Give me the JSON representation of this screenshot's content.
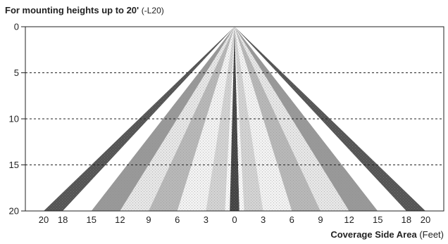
{
  "title": {
    "bold": "For mounting heights up to 20'",
    "note": "(-L20)"
  },
  "xlabel": {
    "bold": "Coverage Side Area",
    "unit": "(Feet)"
  },
  "y_ticks": [
    "0",
    "5",
    "10",
    "15",
    "20"
  ],
  "x_ticks": [
    "20",
    "18",
    "15",
    "12",
    "9",
    "6",
    "3",
    "0",
    "3",
    "6",
    "9",
    "12",
    "15",
    "18",
    "20"
  ],
  "chart_data": {
    "type": "area",
    "y_range": [
      0,
      20
    ],
    "x_range": [
      -20,
      20
    ],
    "gridlines_y": [
      5,
      10,
      15
    ],
    "zones": [
      {
        "x": [
          -20,
          -18
        ],
        "shade": "#555555"
      },
      {
        "x": [
          -18,
          -15
        ],
        "shade": "#ffffff"
      },
      {
        "x": [
          -15,
          -12
        ],
        "shade": "#999999"
      },
      {
        "x": [
          -12,
          -9
        ],
        "shade": "#e6e6e6"
      },
      {
        "x": [
          -9,
          -6
        ],
        "shade": "#b8b8b8"
      },
      {
        "x": [
          -6,
          -3
        ],
        "shade": "#f2f2f2"
      },
      {
        "x": [
          -3,
          -1
        ],
        "shade": "#d3d3d3"
      },
      {
        "x": [
          -1,
          -0.5
        ],
        "shade": "#f7f7f7"
      },
      {
        "x": [
          -0.5,
          0.5
        ],
        "shade": "#444444"
      },
      {
        "x": [
          0.5,
          1
        ],
        "shade": "#f7f7f7"
      },
      {
        "x": [
          1,
          3
        ],
        "shade": "#d3d3d3"
      },
      {
        "x": [
          3,
          6
        ],
        "shade": "#f2f2f2"
      },
      {
        "x": [
          6,
          9
        ],
        "shade": "#b8b8b8"
      },
      {
        "x": [
          9,
          12
        ],
        "shade": "#e6e6e6"
      },
      {
        "x": [
          12,
          15
        ],
        "shade": "#999999"
      },
      {
        "x": [
          15,
          18
        ],
        "shade": "#ffffff"
      },
      {
        "x": [
          18,
          20
        ],
        "shade": "#555555"
      }
    ]
  }
}
